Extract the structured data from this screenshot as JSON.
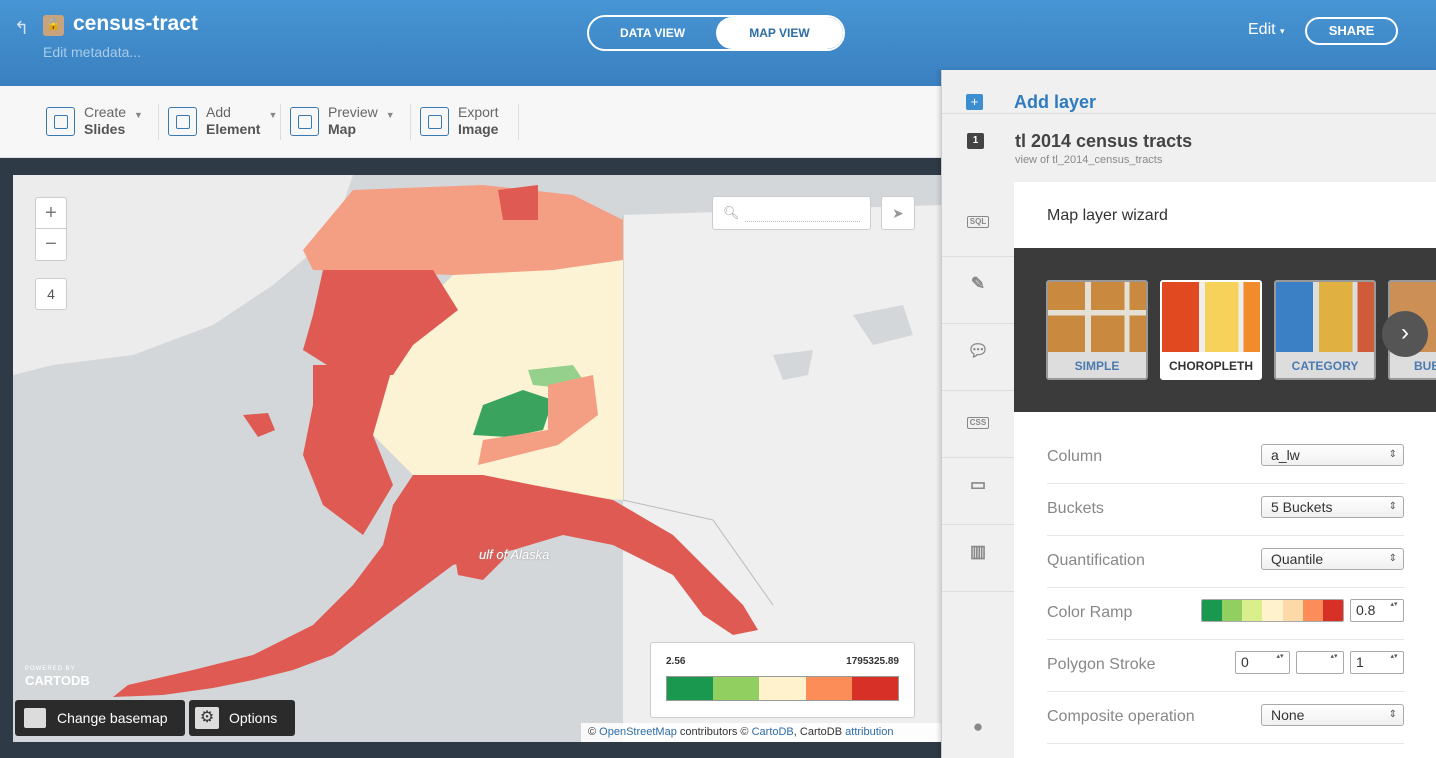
{
  "header": {
    "title": "census-tract",
    "metadata_link": "Edit metadata...",
    "views": [
      "DATA VIEW",
      "MAP VIEW"
    ],
    "active_view": "MAP VIEW",
    "edit_label": "Edit",
    "share_label": "SHARE"
  },
  "toolbar": {
    "items": [
      {
        "line1": "Create",
        "line2": "Slides",
        "caret": true
      },
      {
        "line1": "Add",
        "line2": "Element",
        "caret": true
      },
      {
        "line1": "Preview",
        "line2": "Map",
        "caret": true
      },
      {
        "line1": "Export",
        "line2": "Image",
        "caret": false
      }
    ]
  },
  "map": {
    "zoom_in": "+",
    "zoom_out": "−",
    "zoom_level": "4",
    "place_label": "ulf of Alaska",
    "logo_small": "POWERED BY",
    "logo": "CARTODB",
    "basemap_button": "Change basemap",
    "options_button": "Options",
    "legend": {
      "min": "2.56",
      "max": "1795325.89",
      "colors": [
        "#1a9850",
        "#91cf60",
        "#fff2cc",
        "#fc8d59",
        "#d73027"
      ]
    },
    "attribution": {
      "prefix": "©",
      "osm": "OpenStreetMap",
      "contributors": "contributors ©",
      "cartodb": "CartoDB",
      "mid": ", CartoDB",
      "attrib": "attribution"
    }
  },
  "panel": {
    "add_layer": "Add layer",
    "layer_number": "1",
    "layer_name": "tl 2014 census tracts",
    "layer_subtitle": "view of tl_2014_census_tracts",
    "side_tabs": [
      "SQL",
      "wizard",
      "infowindow",
      "CSS",
      "legends",
      "filters",
      "help"
    ],
    "wizard": {
      "title": "Map layer wizard",
      "types": [
        "SIMPLE",
        "CHOROPLETH",
        "CATEGORY",
        "BUBBLE"
      ],
      "selected_type": "CHOROPLETH",
      "rows": {
        "column_label": "Column",
        "column_value": "a_lw",
        "buckets_label": "Buckets",
        "buckets_value": "5 Buckets",
        "quant_label": "Quantification",
        "quant_value": "Quantile",
        "ramp_label": "Color Ramp",
        "ramp_opacity": "0.8",
        "ramp_colors": [
          "#1a9850",
          "#91cf60",
          "#d9ef8b",
          "#fff2cc",
          "#fdd9a8",
          "#fc8d59",
          "#d73027"
        ],
        "stroke_label": "Polygon Stroke",
        "stroke_width": "0",
        "stroke_opacity": "1",
        "composite_label": "Composite operation",
        "composite_value": "None"
      }
    }
  }
}
